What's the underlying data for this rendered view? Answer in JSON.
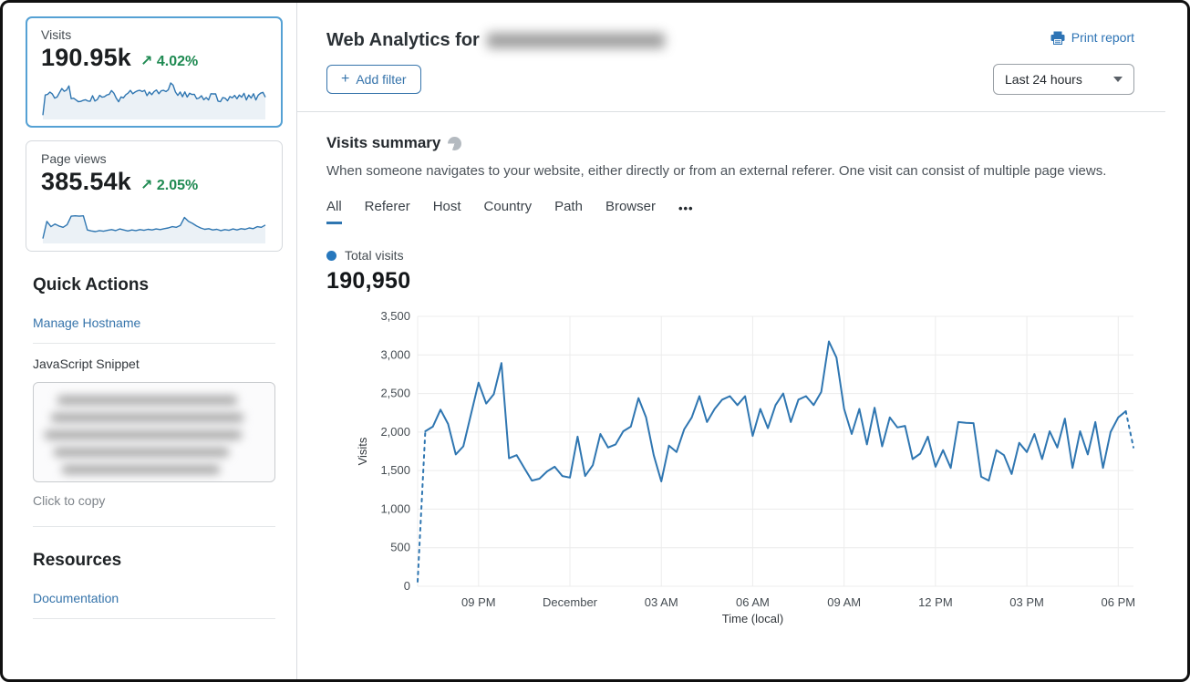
{
  "sidebar": {
    "metric_cards": [
      {
        "label": "Visits",
        "value": "190.95k",
        "arrow": "↗",
        "delta": "4.02%",
        "selected": true
      },
      {
        "label": "Page views",
        "value": "385.54k",
        "arrow": "↗",
        "delta": "2.05%",
        "selected": false
      }
    ],
    "quick_actions": {
      "title": "Quick Actions",
      "manage_hostname": "Manage Hostname",
      "snippet_label": "JavaScript Snippet",
      "snippet_hint": "Click to copy"
    },
    "resources": {
      "title": "Resources",
      "documentation": "Documentation"
    }
  },
  "header": {
    "title_prefix": "Web Analytics for",
    "print_report": "Print report",
    "add_filter": {
      "plus": "+",
      "label": "Add filter"
    },
    "time_range": "Last 24 hours"
  },
  "summary": {
    "title": "Visits summary",
    "description": "When someone navigates to your website, either directly or from an external referer. One visit can consist of multiple page views.",
    "tabs": [
      {
        "label": "All",
        "active": true
      },
      {
        "label": "Referer",
        "active": false
      },
      {
        "label": "Host",
        "active": false
      },
      {
        "label": "Country",
        "active": false
      },
      {
        "label": "Path",
        "active": false
      },
      {
        "label": "Browser",
        "active": false
      }
    ],
    "more_tabs": "•••",
    "legend_label": "Total visits",
    "total": "190,950"
  },
  "chart_data": {
    "type": "line",
    "title": "Visits summary",
    "xlabel": "Time (local)",
    "ylabel": "Visits",
    "ylim": [
      0,
      3500
    ],
    "y_ticks": [
      "0",
      "500",
      "1,000",
      "1,500",
      "2,000",
      "2,500",
      "3,000",
      "3,500"
    ],
    "y_tick_values": [
      0,
      500,
      1000,
      1500,
      2000,
      2500,
      3000,
      3500
    ],
    "x_tick_labels": [
      "09 PM",
      "December",
      "03 AM",
      "06 AM",
      "09 AM",
      "12 PM",
      "03 PM",
      "06 PM"
    ],
    "x_tick_indices": [
      8,
      20,
      32,
      44,
      56,
      68,
      80,
      92
    ],
    "interval_minutes": 15,
    "grid": true,
    "legend_position": "top-left",
    "line_color": "#2f76b1",
    "dashed_head_segments": 1,
    "dashed_tail_segments": 1,
    "series": [
      {
        "name": "Total visits",
        "values": [
          60,
          2010,
          2070,
          2290,
          2105,
          1710,
          1815,
          2230,
          2640,
          2370,
          2490,
          2895,
          1660,
          1700,
          1535,
          1370,
          1395,
          1490,
          1550,
          1430,
          1410,
          1940,
          1430,
          1570,
          1975,
          1800,
          1840,
          2010,
          2070,
          2440,
          2190,
          1700,
          1360,
          1825,
          1740,
          2035,
          2190,
          2465,
          2130,
          2300,
          2420,
          2465,
          2350,
          2465,
          1950,
          2300,
          2050,
          2350,
          2500,
          2130,
          2420,
          2465,
          2350,
          2520,
          3175,
          2965,
          2300,
          1975,
          2300,
          1840,
          2315,
          1815,
          2190,
          2060,
          2080,
          1650,
          1720,
          1940,
          1550,
          1765,
          1535,
          2130,
          2120,
          2115,
          1420,
          1370,
          1765,
          1700,
          1455,
          1860,
          1740,
          1975,
          1650,
          2010,
          1800,
          2175,
          1535,
          2010,
          1710,
          2130,
          1535,
          2000,
          2190,
          2270,
          1800
        ]
      }
    ]
  },
  "sparkline_pageviews_shape": [
    0.04,
    0.56,
    0.4,
    0.48,
    0.42,
    0.38,
    0.46,
    0.72,
    0.73,
    0.72,
    0.73,
    0.3,
    0.27,
    0.25,
    0.28,
    0.26,
    0.29,
    0.31,
    0.28,
    0.33,
    0.3,
    0.27,
    0.3,
    0.28,
    0.31,
    0.29,
    0.32,
    0.3,
    0.33,
    0.31,
    0.34,
    0.36,
    0.4,
    0.38,
    0.44,
    0.68,
    0.56,
    0.5,
    0.42,
    0.36,
    0.32,
    0.34,
    0.3,
    0.32,
    0.28,
    0.31,
    0.29,
    0.33,
    0.3,
    0.34,
    0.32,
    0.36,
    0.34,
    0.4,
    0.38,
    0.45
  ],
  "colors": {
    "accent_blue": "#2f76b1",
    "link_blue": "#3674ab",
    "selected_card_border": "#55a1d4",
    "positive_green": "#1f8a52",
    "grid_gray": "#ececec"
  }
}
